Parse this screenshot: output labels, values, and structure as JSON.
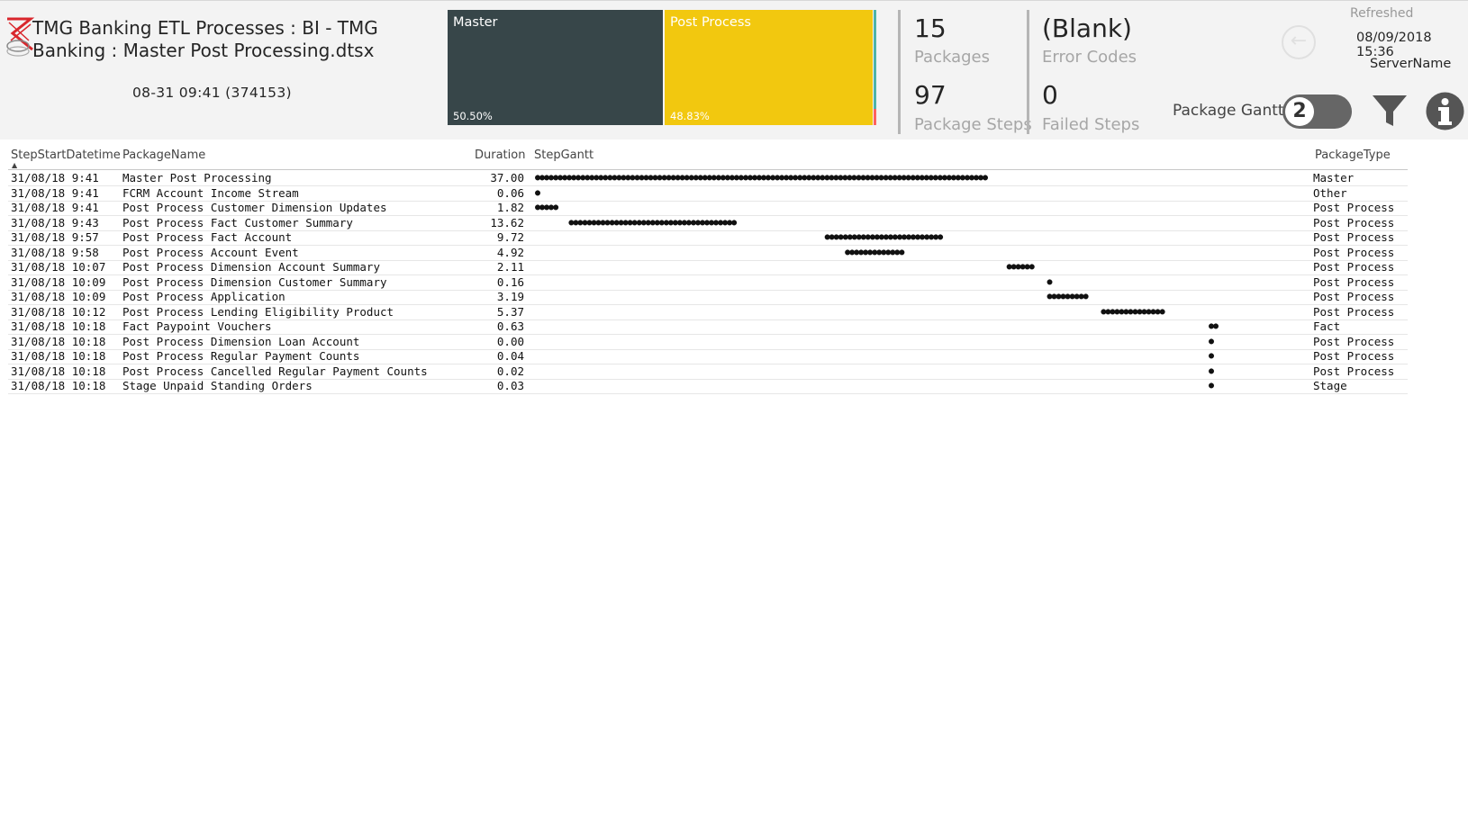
{
  "header": {
    "title": "TMG Banking ETL Processes : BI - TMG Banking : Master Post Processing.dtsx",
    "subtitle": "08-31 09:41 (374153)",
    "refreshed_label": "Refreshed",
    "refreshed_value": "08/09/2018 15:36",
    "server": "ServerName",
    "package_gantt_label": "Package Gantt",
    "toggle_value": "2"
  },
  "treemap": {
    "tiles": [
      {
        "label": "Master",
        "percent": "50.50%",
        "color": "#374649"
      },
      {
        "label": "Post Process",
        "percent": "48.83%",
        "color": "#f2c80f"
      }
    ]
  },
  "kpis": {
    "packages": {
      "value": "15",
      "label": "Packages"
    },
    "package_steps": {
      "value": "97",
      "label": "Package Steps"
    },
    "error_codes": {
      "value": "(Blank)",
      "label": "Error Codes"
    },
    "failed_steps": {
      "value": "0",
      "label": "Failed Steps"
    }
  },
  "table": {
    "columns": [
      "StepStartDatetime",
      "PackageName",
      "Duration",
      "StepGantt",
      "PackageType"
    ],
    "rows": [
      {
        "date": "31/08/18 9:41",
        "pkg": "Master Post Processing",
        "dur": "37.00",
        "start": 0,
        "dots": 100,
        "type": "Master"
      },
      {
        "date": "31/08/18 9:41",
        "pkg": "FCRM Account Income Stream",
        "dur": "0.06",
        "start": 0,
        "dots": 1,
        "type": "Other"
      },
      {
        "date": "31/08/18 9:41",
        "pkg": "Post Process Customer Dimension Updates",
        "dur": "1.82",
        "start": 0,
        "dots": 5,
        "type": "Post Process"
      },
      {
        "date": "31/08/18 9:43",
        "pkg": "Post Process Fact Customer Summary",
        "dur": "13.62",
        "start": 5,
        "dots": 37,
        "type": "Post Process"
      },
      {
        "date": "31/08/18 9:57",
        "pkg": "Post Process Fact Account",
        "dur": "9.72",
        "start": 43,
        "dots": 26,
        "type": "Post Process"
      },
      {
        "date": "31/08/18 9:58",
        "pkg": "Post Process Account Event",
        "dur": "4.92",
        "start": 46,
        "dots": 13,
        "type": "Post Process"
      },
      {
        "date": "31/08/18 10:07",
        "pkg": "Post Process Dimension Account Summary",
        "dur": "2.11",
        "start": 70,
        "dots": 6,
        "type": "Post Process"
      },
      {
        "date": "31/08/18 10:09",
        "pkg": "Post Process Dimension Customer Summary",
        "dur": "0.16",
        "start": 76,
        "dots": 1,
        "type": "Post Process"
      },
      {
        "date": "31/08/18 10:09",
        "pkg": "Post Process Application",
        "dur": "3.19",
        "start": 76,
        "dots": 9,
        "type": "Post Process"
      },
      {
        "date": "31/08/18 10:12",
        "pkg": "Post Process Lending Eligibility Product",
        "dur": "5.37",
        "start": 84,
        "dots": 14,
        "type": "Post Process"
      },
      {
        "date": "31/08/18 10:18",
        "pkg": "Fact Paypoint Vouchers",
        "dur": "0.63",
        "start": 100,
        "dots": 2,
        "type": "Fact"
      },
      {
        "date": "31/08/18 10:18",
        "pkg": "Post Process Dimension Loan Account",
        "dur": "0.00",
        "start": 100,
        "dots": 1,
        "type": "Post Process"
      },
      {
        "date": "31/08/18 10:18",
        "pkg": "Post Process Regular Payment Counts",
        "dur": "0.04",
        "start": 100,
        "dots": 1,
        "type": "Post Process"
      },
      {
        "date": "31/08/18 10:18",
        "pkg": "Post Process Cancelled Regular Payment Counts",
        "dur": "0.02",
        "start": 100,
        "dots": 1,
        "type": "Post Process"
      },
      {
        "date": "31/08/18 10:18",
        "pkg": "Stage Unpaid Standing Orders",
        "dur": "0.03",
        "start": 100,
        "dots": 1,
        "type": "Stage"
      }
    ]
  }
}
